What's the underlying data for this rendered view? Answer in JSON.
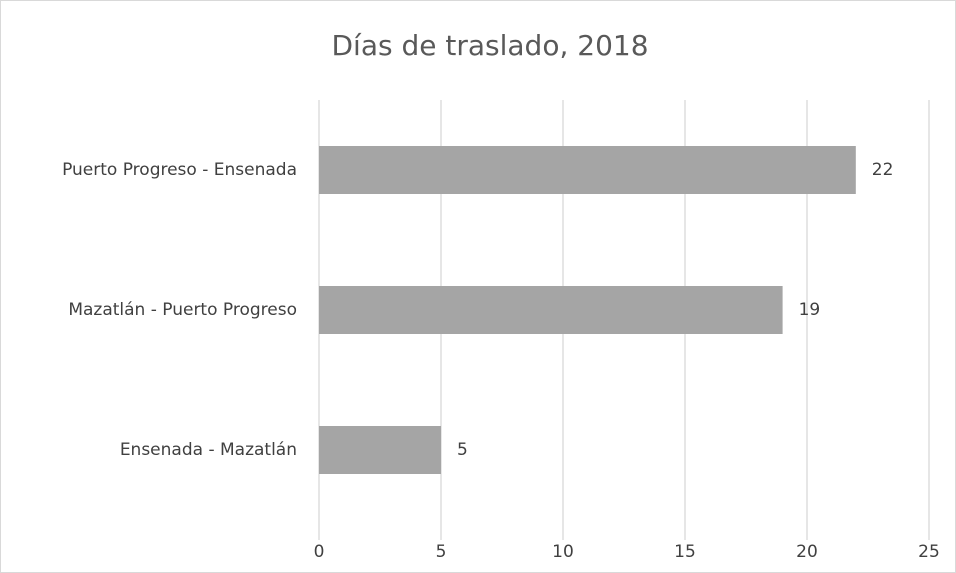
{
  "chart_data": {
    "type": "barh",
    "title": "Días de traslado, 2018",
    "categories": [
      "Puerto Progreso - Ensenada",
      "Mazatlán - Puerto Progreso",
      "Ensenada - Mazatlán"
    ],
    "values": [
      22,
      19,
      5
    ],
    "color": "#a5a5a5",
    "xlim": [
      0,
      25
    ],
    "xticks": [
      0,
      5,
      10,
      15,
      20,
      25
    ],
    "grid": true
  }
}
